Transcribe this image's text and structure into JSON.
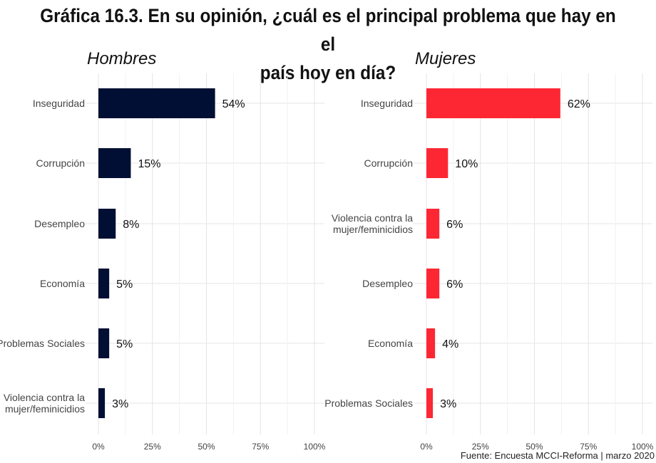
{
  "title_line1": "Gráfica 16.3. En su opinión, ¿cuál es el principal problema que hay en el",
  "title_line2": "país hoy en día?",
  "source": "Fuente: Encuesta MCCI-Reforma | marzo 2020",
  "chart_data": [
    {
      "type": "bar",
      "orientation": "horizontal",
      "title": "Hombres",
      "color": "#000f33",
      "categories": [
        "Inseguridad",
        "Corrupción",
        "Desempleo",
        "Economía",
        "Problemas Sociales",
        "Violencia contra la mujer/feminicidios"
      ],
      "values": [
        54,
        15,
        8,
        5,
        5,
        3
      ],
      "labels": [
        "54%",
        "15%",
        "8%",
        "5%",
        "5%",
        "3%"
      ],
      "xlim": [
        0,
        100
      ],
      "xticks": [
        "0%",
        "25%",
        "50%",
        "75%",
        "100%"
      ],
      "grid": true
    },
    {
      "type": "bar",
      "orientation": "horizontal",
      "title": "Mujeres",
      "color": "#fd2734",
      "categories": [
        "Inseguridad",
        "Corrupción",
        "Violencia contra la mujer/feminicidios",
        "Desempleo",
        "Economía",
        "Problemas Sociales"
      ],
      "values": [
        62,
        10,
        6,
        6,
        4,
        3
      ],
      "labels": [
        "62%",
        "10%",
        "6%",
        "6%",
        "4%",
        "3%"
      ],
      "xlim": [
        0,
        100
      ],
      "xticks": [
        "0%",
        "25%",
        "50%",
        "75%",
        "100%"
      ],
      "grid": true
    }
  ]
}
